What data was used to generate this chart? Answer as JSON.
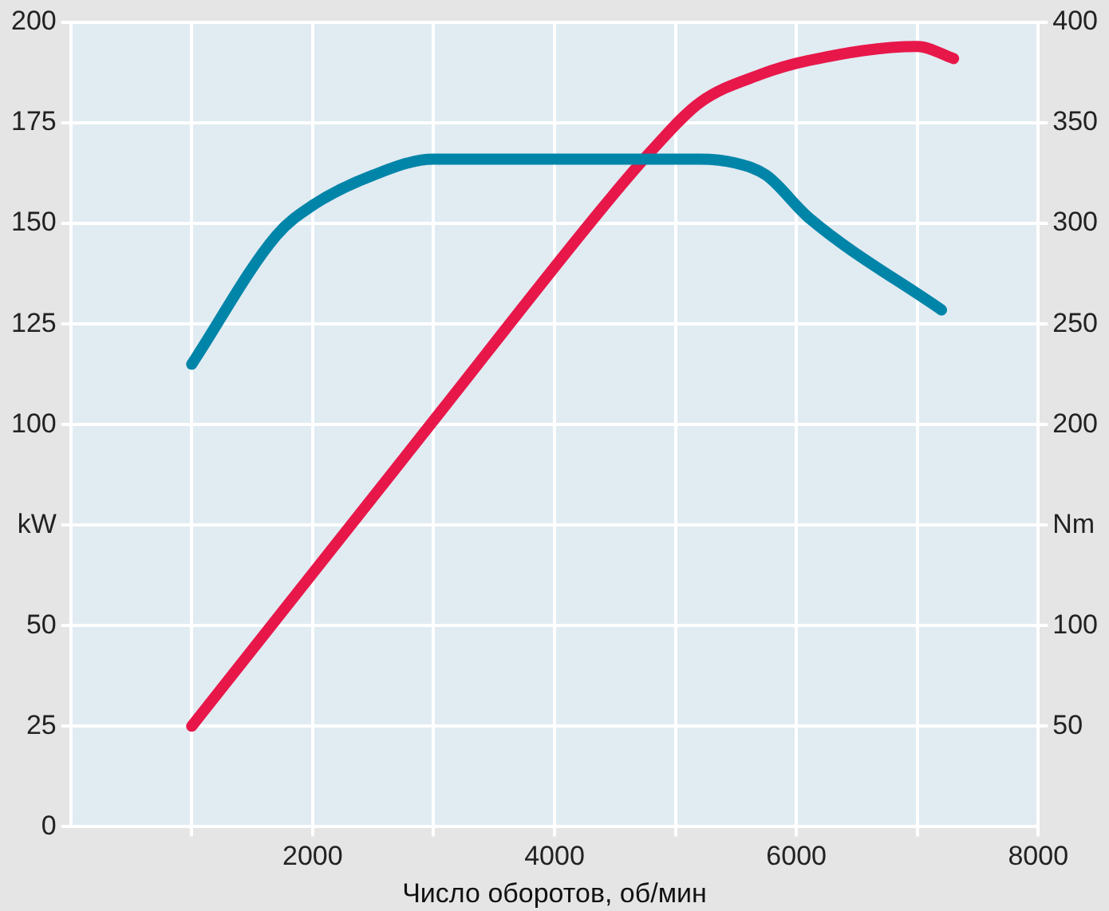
{
  "chart_data": {
    "type": "line",
    "xlabel": "Число оборотов, об/мин",
    "xlim": [
      0,
      8000
    ],
    "xticks": [
      {
        "value": 1000,
        "label": null
      },
      2000,
      {
        "value": 3000,
        "label": null
      },
      4000,
      {
        "value": 5000,
        "label": null
      },
      6000,
      {
        "value": 7000,
        "label": null
      },
      8000
    ],
    "ylim": [
      0,
      200
    ],
    "yticks": [
      0,
      25,
      50,
      {
        "value": 75,
        "label": "kW"
      },
      100,
      125,
      150,
      175,
      200
    ],
    "y2lim": [
      0,
      400
    ],
    "y2ticks": [
      50,
      100,
      {
        "value": 150,
        "label": "Nm"
      },
      200,
      250,
      300,
      350,
      400
    ],
    "grid": true,
    "legend": false,
    "marker": "none",
    "line_style": "solid",
    "series": [
      {
        "color": "#0085a9",
        "axis": "y2",
        "x": [
          1000,
          1700,
          2000,
          2500,
          3000,
          5200,
          5500,
          5750,
          6100,
          7200
        ],
        "values": [
          230,
          294,
          309,
          324,
          332,
          332,
          330,
          324,
          303,
          257
        ]
      },
      {
        "color": "#e8174a",
        "x": [
          1000,
          3000,
          4400,
          4800,
          5200,
          5700,
          6100,
          7000,
          7300
        ],
        "values": [
          25,
          101,
          154,
          168,
          180,
          187,
          190.5,
          194,
          191
        ]
      }
    ]
  }
}
